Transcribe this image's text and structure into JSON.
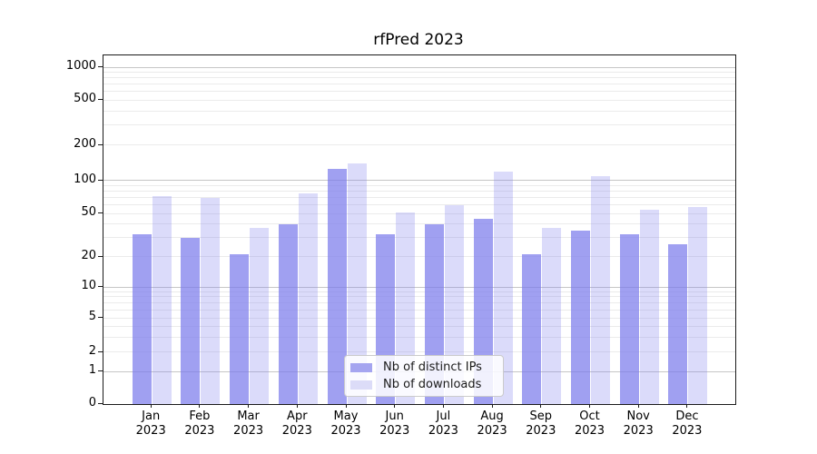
{
  "chart_data": {
    "type": "bar",
    "title": "rfPred 2023",
    "categories": [
      "Jan",
      "Feb",
      "Mar",
      "Apr",
      "May",
      "Jun",
      "Jul",
      "Aug",
      "Sep",
      "Oct",
      "Nov",
      "Dec"
    ],
    "category_year": "2023",
    "series": [
      {
        "name": "Nb of distinct IPs",
        "color": "#a5a5f0",
        "values": [
          32,
          30,
          21,
          40,
          125,
          32,
          40,
          45,
          21,
          35,
          32,
          26
        ]
      },
      {
        "name": "Nb of downloads",
        "color": "#dcdcf8",
        "values": [
          72,
          69,
          37,
          76,
          140,
          51,
          60,
          118,
          37,
          108,
          54,
          57
        ]
      }
    ],
    "yticks": [
      0,
      1,
      2,
      5,
      10,
      20,
      50,
      100,
      200,
      500,
      1000
    ],
    "yscale": "symlog",
    "ylim": [
      0,
      1260
    ],
    "xlabel": "",
    "ylabel": "",
    "grid": "both",
    "legend_position": "lower center"
  }
}
